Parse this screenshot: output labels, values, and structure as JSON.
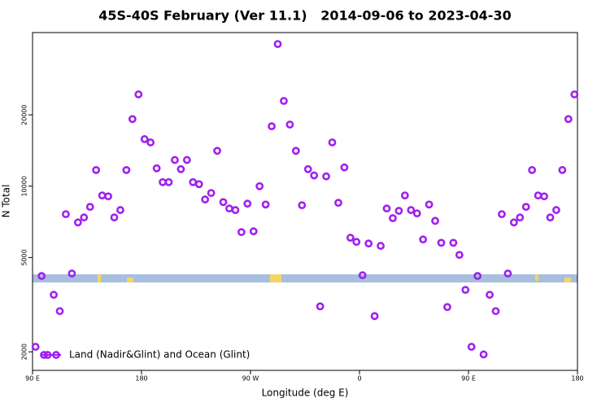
{
  "chart_data": {
    "type": "scatter",
    "title": "45S-40S February (Ver 11.1)   2014-09-06 to 2023-04-30",
    "x_label": "Longitude (deg E)",
    "y_label": "N Total",
    "y_log": true,
    "legend": "bottom-left",
    "xlim": [
      90,
      540
    ],
    "xticks": [
      {
        "value": 90,
        "label": "90 E"
      },
      180,
      {
        "value": 270,
        "label": "90 W"
      },
      {
        "value": 360,
        "label": "0"
      },
      {
        "value": 450,
        "label": "90 E"
      },
      {
        "value": 540,
        "label": "180"
      }
    ],
    "ylim": [
      1670,
      44500
    ],
    "yticks": [
      2000,
      5000,
      10000,
      20000
    ],
    "x": [
      92.5,
      97.5,
      102.5,
      107.5,
      112.5,
      117.5,
      122.5,
      127.5,
      132.5,
      137.5,
      142.5,
      147.5,
      152.5,
      157.5,
      162.5,
      167.5,
      172.5,
      177.5,
      182.5,
      187.5,
      192.5,
      197.5,
      202.5,
      207.5,
      212.5,
      217.5,
      222.5,
      227.5,
      232.5,
      237.5,
      242.5,
      247.5,
      252.5,
      257.5,
      262.5,
      267.5,
      272.5,
      277.5,
      282.5,
      287.5,
      292.5,
      297.5,
      302.5,
      307.5,
      312.5,
      317.5,
      322.5,
      327.5,
      332.5,
      337.5,
      342.5,
      347.5,
      352.5,
      357.5,
      362.5,
      367.5,
      372.5,
      377.5,
      382.5,
      387.5,
      392.5,
      397.5,
      402.5,
      407.5,
      412.5,
      417.5,
      422.5,
      427.5,
      432.5,
      437.5,
      442.5,
      447.5,
      452.5,
      457.5,
      462.5,
      467.5,
      472.5,
      477.5,
      482.5,
      487.5,
      492.5,
      497.5,
      502.5,
      507.5,
      512.5,
      517.5,
      522.5,
      527.5,
      532.5,
      537.5
    ],
    "series": [
      {
        "name": "Land (Nadir&Glint) and Ocean (Glint)",
        "color": "#a020f0",
        "values": [
          2100,
          4180,
          1940,
          3480,
          2970,
          7620,
          4280,
          7030,
          7380,
          8180,
          11700,
          9140,
          9060,
          7380,
          7930,
          11700,
          19200,
          24400,
          15800,
          15300,
          11900,
          10400,
          10400,
          12900,
          11800,
          12900,
          10400,
          10200,
          8790,
          9360,
          14100,
          8570,
          8050,
          7930,
          6400,
          8440,
          6450,
          10000,
          8370,
          17900,
          39800,
          22900,
          18200,
          14100,
          8310,
          11800,
          11100,
          3110,
          11000,
          15300,
          8510,
          12000,
          6060,
          5820,
          4210,
          5730,
          2830,
          5600,
          8050,
          7330,
          7870,
          9140,
          7930,
          7680,
          5960,
          8370,
          7140,
          5770,
          3090,
          5770,
          5130,
          3650,
          2100,
          4180,
          1950,
          3480,
          2970,
          7620,
          4280,
          7030,
          7380,
          8180,
          11700,
          9140,
          9060,
          7380,
          7930,
          11700,
          19200,
          24400
        ]
      }
    ]
  }
}
